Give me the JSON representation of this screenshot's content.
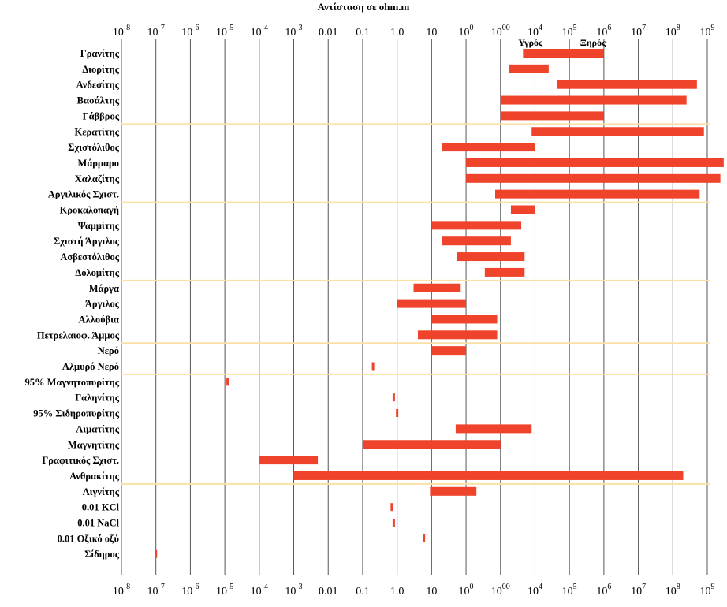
{
  "chart_data": {
    "type": "bar",
    "orientation": "horizontal-range",
    "title": "Αντίσταση σε ohm.m",
    "x_scale": "log",
    "xlim": [
      1e-08,
      1000000000.0
    ],
    "tick_labels": [
      "10-8",
      "10-7",
      "10-6",
      "10-5",
      "10-4",
      "10-3",
      "0.01",
      "0.1",
      "1.0",
      "10",
      "100",
      "1000",
      "104",
      "105",
      "106",
      "107",
      "108",
      "109"
    ],
    "grid": true,
    "annotations": [
      {
        "text": "Υγρός",
        "x": 8000
      },
      {
        "text": "Ξηρός",
        "x": 500000
      }
    ],
    "categories": [
      "Γρανίτης",
      "Διορίτης",
      "Ανδεσίτης",
      "Βασάλτης",
      "Γάββρος",
      "Κερατίτης",
      "Σχιστόλιθος",
      "Μάρμαρο",
      "Χαλαζίτης",
      "Αργιλικός Σχιστ.",
      "Κροκαλοπαγή",
      "Ψαμμίτης",
      "Σχιστή Άργιλος",
      "Ασβεστόλιθος",
      "Δολομίτης",
      "Μάργα",
      "Άργιλος",
      "Αλλούβια",
      "Πετρελαιοφ. Άμμος",
      "Νερό",
      "Αλμυρό Νερό",
      "95% Μαγνητοπυρίτης",
      "Γαληνίτης",
      "95% Σιδηροπυρίτης",
      "Αιματίτης",
      "Μαγνητίτης",
      "Γραφιτικός Σχιστ.",
      "Ανθρακίτης",
      "Λιγνίτης",
      "0.01 KCl",
      "0.01 NaCl",
      "0.01 Οξικό οξύ",
      "Σίδηρος"
    ],
    "ranges": [
      [
        4500,
        1000000
      ],
      [
        1800,
        25000
      ],
      [
        45000,
        500000000
      ],
      [
        1000,
        250000000
      ],
      [
        1000,
        1000000
      ],
      [
        8000,
        800000000
      ],
      [
        20,
        10000
      ],
      [
        100,
        3000000000
      ],
      [
        100,
        2400000000
      ],
      [
        700,
        600000000
      ],
      [
        2000,
        10000
      ],
      [
        10,
        4000
      ],
      [
        20,
        2000
      ],
      [
        55,
        5000
      ],
      [
        350,
        5000
      ],
      [
        3,
        70
      ],
      [
        1,
        100
      ],
      [
        10,
        800
      ],
      [
        4,
        800
      ],
      [
        10,
        100
      ],
      [
        0.2,
        0.2
      ],
      [
        1.2e-05,
        1.2e-05
      ],
      [
        0.8,
        0.8
      ],
      [
        1,
        1
      ],
      [
        50,
        8000
      ],
      [
        0.1,
        1000
      ],
      [
        0.0001,
        0.005
      ],
      [
        0.001,
        200000000
      ],
      [
        9,
        200
      ],
      [
        0.7,
        0.7
      ],
      [
        0.8,
        0.8
      ],
      [
        6,
        6
      ],
      [
        1e-07,
        1e-07
      ]
    ],
    "group_separators_after": [
      5,
      10,
      15,
      19,
      21,
      28
    ],
    "bar_color": "#f0432b",
    "separator_color": "#f9e1a6"
  }
}
